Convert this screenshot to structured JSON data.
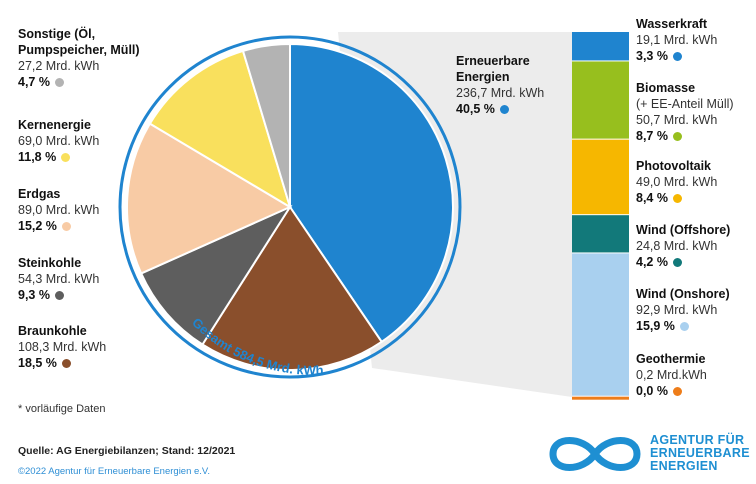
{
  "chart_data": [
    {
      "type": "pie",
      "slices": [
        {
          "name": "Erneuerbare Energien",
          "value_text": "236,7 Mrd. kWh",
          "value": 236.7,
          "percent_text": "40,5 %",
          "percent": 40.5,
          "color": "#1f84cf"
        },
        {
          "name": "Braunkohle",
          "value_text": "108,3 Mrd. kWh",
          "value": 108.3,
          "percent_text": "18,5 %",
          "percent": 18.5,
          "color": "#8a4f2c"
        },
        {
          "name": "Steinkohle",
          "value_text": "54,3 Mrd. kWh",
          "value": 54.3,
          "percent_text": "9,3 %",
          "percent": 9.3,
          "color": "#5e5e5e"
        },
        {
          "name": "Erdgas",
          "value_text": "89,0 Mrd. kWh",
          "value": 89.0,
          "percent_text": "15,2 %",
          "percent": 15.2,
          "color": "#f8cba5"
        },
        {
          "name": "Kernenergie",
          "value_text": "69,0 Mrd. kWh",
          "value": 69.0,
          "percent_text": "11,8 %",
          "percent": 11.8,
          "color": "#f9e05d"
        },
        {
          "name": "Sonstige (Öl, Pumpspeicher, Müll)",
          "value_text": "27,2 Mrd. kWh",
          "value": 27.2,
          "percent_text": "4,7 %",
          "percent": 4.7,
          "color": "#b3b3b3"
        }
      ],
      "total_label": "Gesamt 584,5 Mrd. kWh",
      "ring_color": "#1f84cf"
    },
    {
      "type": "bar",
      "stacked": true,
      "title": "Erneuerbare Energien",
      "series": [
        {
          "name": "Wasserkraft",
          "value_text": "19,1 Mrd. kWh",
          "value": 19.1,
          "percent_text": "3,3 %",
          "percent": 3.3,
          "color": "#1f84cf"
        },
        {
          "name": "Biomasse",
          "subtitle": "(+ EE-Anteil Müll)",
          "value_text": "50,7 Mrd. kWh",
          "value": 50.7,
          "percent_text": "8,7 %",
          "percent": 8.7,
          "color": "#97bf1e"
        },
        {
          "name": "Photovoltaik",
          "value_text": "49,0 Mrd. kWh",
          "value": 49.0,
          "percent_text": "8,4 %",
          "percent": 8.4,
          "color": "#f6b700"
        },
        {
          "name": "Wind (Offshore)",
          "value_text": "24,8 Mrd. kWh",
          "value": 24.8,
          "percent_text": "4,2 %",
          "percent": 4.2,
          "color": "#12797a"
        },
        {
          "name": "Wind (Onshore)",
          "value_text": "92,9 Mrd. kWh",
          "value": 92.9,
          "percent_text": "15,9 %",
          "percent": 15.9,
          "color": "#a9d0ef"
        },
        {
          "name": "Geothermie",
          "value_text": "0,2 Mrd.kWh",
          "value": 0.2,
          "percent_text": "0,0 %",
          "percent": 0.0,
          "color": "#ee7d1a"
        }
      ]
    }
  ],
  "footer": {
    "note": "* vorläufige Daten",
    "source": "Quelle: AG Energiebilanzen; Stand: 12/2021",
    "copyright": "©2022 Agentur für Erneuerbare Energien e.V."
  },
  "logo": {
    "line1": "AGENTUR FÜR",
    "line2": "ERNEUERBARE",
    "line3": "ENERGIEN"
  }
}
